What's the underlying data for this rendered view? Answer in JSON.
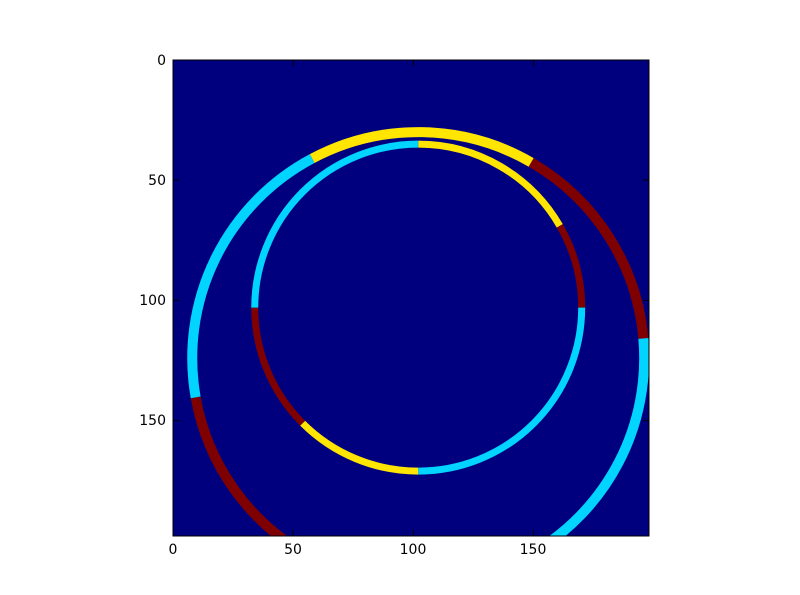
{
  "chart_data": {
    "type": "heatmap",
    "title": "",
    "xlabel": "",
    "ylabel": "",
    "xlim": [
      0,
      198
    ],
    "ylim": [
      198,
      0
    ],
    "x_ticks": [
      "0",
      "50",
      "100",
      "150"
    ],
    "y_ticks": [
      "0",
      "50",
      "100",
      "150"
    ],
    "grid": false,
    "colormap": "jet",
    "colors": {
      "background": "#00007f",
      "cyan": "#00d4ff",
      "yellow": "#ffe500",
      "dark_red": "#7f0000"
    },
    "inner_ring": {
      "center": [
        102,
        103
      ],
      "radius": 68,
      "segments": [
        {
          "from_deg": -90,
          "to_deg": -30,
          "color": "yellow"
        },
        {
          "from_deg": -30,
          "to_deg": 0,
          "color": "dark_red"
        },
        {
          "from_deg": 0,
          "to_deg": 90,
          "color": "cyan"
        },
        {
          "from_deg": 90,
          "to_deg": 135,
          "color": "yellow"
        },
        {
          "from_deg": 135,
          "to_deg": 180,
          "color": "dark_red"
        },
        {
          "from_deg": 180,
          "to_deg": 270,
          "color": "cyan"
        }
      ]
    },
    "outer_ring": {
      "center": [
        102,
        124
      ],
      "radius": 94,
      "segments": [
        {
          "from_deg": -118,
          "to_deg": -60,
          "color": "yellow"
        },
        {
          "from_deg": -60,
          "to_deg": -5,
          "color": "dark_red"
        },
        {
          "from_deg": -5,
          "to_deg": 60,
          "color": "cyan"
        },
        {
          "from_deg": 60,
          "to_deg": 120,
          "color": "yellow"
        },
        {
          "from_deg": 120,
          "to_deg": 170,
          "color": "dark_red"
        },
        {
          "from_deg": 170,
          "to_deg": 242,
          "color": "cyan"
        }
      ]
    }
  }
}
